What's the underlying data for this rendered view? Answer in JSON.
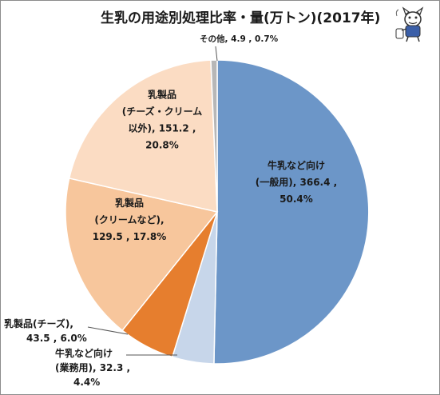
{
  "chart_data": {
    "type": "pie",
    "title": "生乳の用途別処理比率・量(万トン)(2017年)",
    "start_angle_deg": 0,
    "direction": "clockwise",
    "slices": [
      {
        "category": "牛乳など向け(一般用)",
        "value": 366.4,
        "percent": 50.4,
        "color": "#6c96c8",
        "label_lines": [
          "牛乳など向け",
          "(一般用), 366.4 ,",
          "50.4%"
        ]
      },
      {
        "category": "牛乳など向け(業務用)",
        "value": 32.3,
        "percent": 4.4,
        "color": "#c7d6ea",
        "label_lines": [
          "牛乳など向け",
          "(業務用), 32.3 ,",
          "4.4%"
        ]
      },
      {
        "category": "乳製品(チーズ)",
        "value": 43.5,
        "percent": 6.0,
        "color": "#e67e2e",
        "label_lines": [
          "乳製品(チーズ),",
          "43.5 , 6.0%"
        ]
      },
      {
        "category": "乳製品(クリームなど)",
        "value": 129.5,
        "percent": 17.8,
        "color": "#f7c69c",
        "label_lines": [
          "乳製品",
          "(クリームなど),",
          "129.5 , 17.8%"
        ]
      },
      {
        "category": "乳製品(チーズ・クリーム以外)",
        "value": 151.2,
        "percent": 20.8,
        "color": "#fbdcc3",
        "label_lines": [
          "乳製品",
          "(チーズ・クリーム",
          "以外), 151.2 ,",
          "20.8%"
        ]
      },
      {
        "category": "その他",
        "value": 4.9,
        "percent": 0.7,
        "color": "#b7b7b7",
        "label_lines": [
          "その他, 4.9 , 0.7%"
        ]
      }
    ]
  }
}
